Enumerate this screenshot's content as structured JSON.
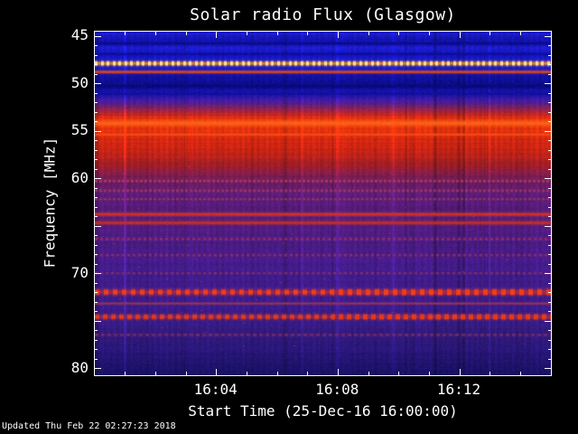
{
  "footer": {
    "updated": "Updated Thu Feb 22 02:27:23 2018"
  },
  "chart_data": {
    "type": "heatmap",
    "title": "Solar radio Flux (Glasgow)",
    "xlabel": "Start Time (25-Dec-16 16:00:00)",
    "ylabel": "Frequency [MHz]",
    "freq_range": [
      44.5,
      80.7
    ],
    "x_span_minutes": 15,
    "x_ticks": [
      {
        "minute": 4,
        "label": "16:04"
      },
      {
        "minute": 8,
        "label": "16:08"
      },
      {
        "minute": 12,
        "label": "16:12"
      }
    ],
    "x_minor_every_minute": 1,
    "y_ticks": [
      {
        "f": 45,
        "label": "45"
      },
      {
        "f": 50,
        "label": "50"
      },
      {
        "f": 55,
        "label": "55"
      },
      {
        "f": 60,
        "label": "60"
      },
      {
        "f": 65,
        "label": ""
      },
      {
        "f": 70,
        "label": "70"
      },
      {
        "f": 75,
        "label": ""
      },
      {
        "f": 80,
        "label": "80"
      }
    ],
    "color_stops": [
      {
        "f": 44.5,
        "c": [
          30,
          30,
          205
        ]
      },
      {
        "f": 45.4,
        "c": [
          18,
          18,
          165
        ]
      },
      {
        "f": 46.2,
        "c": [
          28,
          28,
          200
        ]
      },
      {
        "f": 47.1,
        "c": [
          20,
          20,
          180
        ]
      },
      {
        "f": 47.9,
        "c": [
          35,
          35,
          205
        ]
      },
      {
        "f": 48.4,
        "c": [
          25,
          25,
          185
        ]
      },
      {
        "f": 49.3,
        "c": [
          16,
          16,
          155
        ]
      },
      {
        "f": 50.1,
        "c": [
          13,
          13,
          140
        ]
      },
      {
        "f": 50.9,
        "c": [
          22,
          18,
          170
        ]
      },
      {
        "f": 51.7,
        "c": [
          58,
          26,
          160
        ]
      },
      {
        "f": 52.4,
        "c": [
          110,
          32,
          104
        ]
      },
      {
        "f": 53.0,
        "c": [
          170,
          34,
          50
        ]
      },
      {
        "f": 53.5,
        "c": [
          214,
          42,
          18
        ]
      },
      {
        "f": 54.1,
        "c": [
          230,
          60,
          14
        ]
      },
      {
        "f": 54.9,
        "c": [
          222,
          48,
          14
        ]
      },
      {
        "f": 55.9,
        "c": [
          206,
          38,
          16
        ]
      },
      {
        "f": 57.2,
        "c": [
          188,
          34,
          20
        ]
      },
      {
        "f": 58.5,
        "c": [
          160,
          30,
          36
        ]
      },
      {
        "f": 59.5,
        "c": [
          126,
          28,
          72
        ]
      },
      {
        "f": 60.5,
        "c": [
          101,
          27,
          98
        ]
      },
      {
        "f": 61.7,
        "c": [
          88,
          27,
          114
        ]
      },
      {
        "f": 63.0,
        "c": [
          82,
          27,
          118
        ]
      },
      {
        "f": 64.3,
        "c": [
          86,
          29,
          116
        ]
      },
      {
        "f": 65.6,
        "c": [
          76,
          27,
          124
        ]
      },
      {
        "f": 67.0,
        "c": [
          71,
          27,
          128
        ]
      },
      {
        "f": 68.6,
        "c": [
          67,
          27,
          132
        ]
      },
      {
        "f": 70.2,
        "c": [
          63,
          27,
          134
        ]
      },
      {
        "f": 72.0,
        "c": [
          61,
          27,
          136
        ]
      },
      {
        "f": 73.6,
        "c": [
          58,
          27,
          134
        ]
      },
      {
        "f": 75.2,
        "c": [
          54,
          26,
          127
        ]
      },
      {
        "f": 76.8,
        "c": [
          46,
          25,
          119
        ]
      },
      {
        "f": 78.4,
        "c": [
          37,
          21,
          114
        ]
      },
      {
        "f": 80.7,
        "c": [
          24,
          16,
          96
        ]
      }
    ],
    "lines": [
      {
        "f": 45.7,
        "w": 1.3,
        "on": [
          10,
          10,
          140
        ]
      },
      {
        "f": 46.8,
        "w": 1.0,
        "on": [
          12,
          12,
          150
        ]
      },
      {
        "f": 47.8,
        "w": 1.6,
        "on": [
          255,
          235,
          135
        ],
        "off": [
          235,
          130,
          35
        ],
        "period": 6.5,
        "duty": 0.42
      },
      {
        "f": 48.7,
        "w": 1.2,
        "on": [
          228,
          72,
          22
        ]
      },
      {
        "f": 50.2,
        "w": 1.7,
        "on": [
          9,
          9,
          120
        ]
      },
      {
        "f": 51.0,
        "w": 1.1,
        "on": [
          18,
          14,
          150
        ]
      },
      {
        "f": 54.1,
        "w": 2.2,
        "on": [
          252,
          96,
          22
        ]
      },
      {
        "f": 55.3,
        "w": 1.0,
        "on": [
          248,
          74,
          20
        ]
      },
      {
        "f": 60.2,
        "w": 1.1,
        "on": [
          172,
          56,
          96
        ],
        "period": 5,
        "duty": 0.5
      },
      {
        "f": 61.2,
        "w": 1.1,
        "on": [
          162,
          52,
          102
        ],
        "period": 5,
        "duty": 0.5
      },
      {
        "f": 62.1,
        "w": 0.9,
        "on": [
          152,
          50,
          102
        ],
        "period": 5,
        "duty": 0.45
      },
      {
        "f": 63.7,
        "w": 1.4,
        "on": [
          206,
          52,
          40
        ]
      },
      {
        "f": 64.6,
        "w": 1.4,
        "on": [
          196,
          47,
          44
        ]
      },
      {
        "f": 66.3,
        "w": 1.0,
        "on": [
          152,
          46,
          96
        ],
        "period": 6,
        "duty": 0.5
      },
      {
        "f": 68.0,
        "w": 1.0,
        "on": [
          142,
          44,
          102
        ],
        "period": 6,
        "duty": 0.5
      },
      {
        "f": 69.9,
        "w": 0.9,
        "on": [
          137,
          44,
          102
        ],
        "period": 6,
        "duty": 0.5
      },
      {
        "f": 71.9,
        "w": 2.0,
        "on": [
          242,
          62,
          24
        ],
        "off": [
          162,
          42,
          72
        ],
        "period": 10,
        "duty": 0.5,
        "boost": 1.35
      },
      {
        "f": 73.1,
        "w": 0.9,
        "on": [
          152,
          52,
          82
        ]
      },
      {
        "f": 74.5,
        "w": 1.8,
        "on": [
          228,
          58,
          26
        ],
        "off": [
          142,
          42,
          86
        ],
        "period": 9,
        "duty": 0.5,
        "boost": 1.4
      },
      {
        "f": 76.4,
        "w": 1.0,
        "on": [
          122,
          42,
          102
        ],
        "period": 7,
        "duty": 0.5
      }
    ],
    "background_color": "#000000",
    "axis_color": "#ffffff",
    "legend": "none",
    "grid": "off"
  }
}
